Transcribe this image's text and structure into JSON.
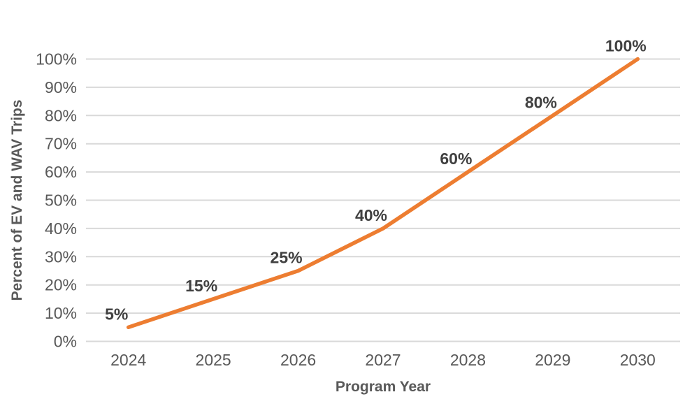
{
  "chart_data": {
    "type": "line",
    "title": "",
    "categories": [
      "2024",
      "2025",
      "2026",
      "2027",
      "2028",
      "2029",
      "2030"
    ],
    "values": [
      5,
      15,
      25,
      40,
      60,
      80,
      100
    ],
    "data_labels": [
      "5%",
      "15%",
      "25%",
      "40%",
      "60%",
      "80%",
      "100%"
    ],
    "xlabel": "Program Year",
    "ylabel": "Percent of EV and WAV Trips",
    "ylim": [
      0,
      100
    ],
    "ytick_step": 10,
    "ytick_labels": [
      "0%",
      "10%",
      "20%",
      "30%",
      "40%",
      "50%",
      "60%",
      "70%",
      "80%",
      "90%",
      "100%"
    ],
    "legend": "none",
    "grid": "horizontal",
    "colors": {
      "line": "#ED7D31",
      "gridline": "#D9D9D9",
      "tick_text": "#595959",
      "data_label_text": "#404040",
      "axis_title_text": "#595959",
      "background": "#FFFFFF"
    }
  }
}
